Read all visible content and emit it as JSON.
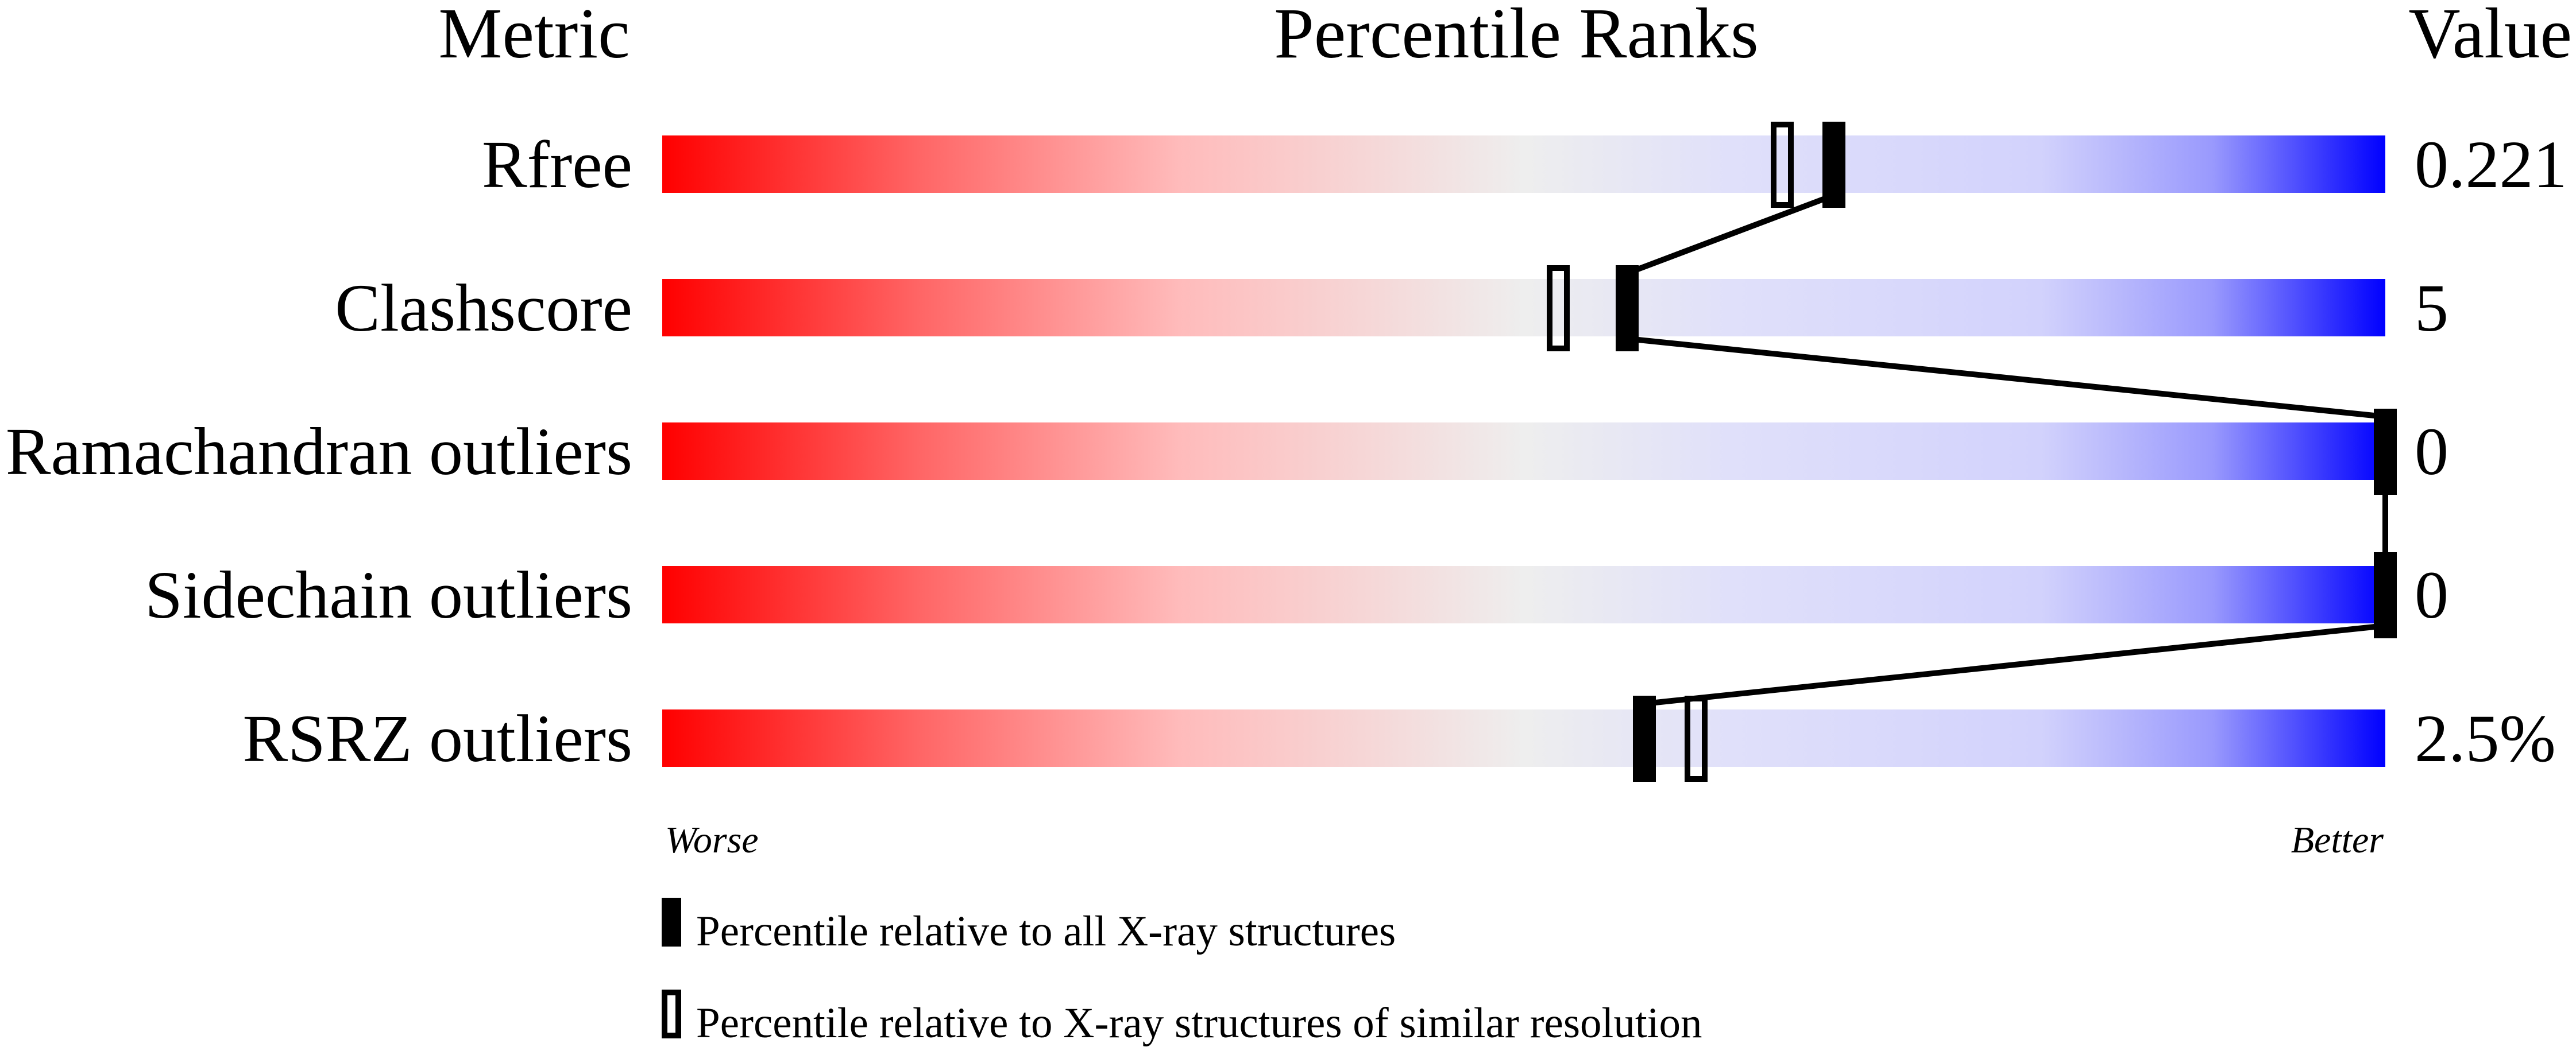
{
  "chart_data": {
    "type": "percentile-bar",
    "headers": {
      "metric": "Metric",
      "ranks": "Percentile Ranks",
      "value": "Value"
    },
    "xlim": [
      0,
      100
    ],
    "axis_labels": {
      "left": "Worse",
      "right": "Better"
    },
    "colors": {
      "worse": "#ff0000",
      "middle": "#eeeeee",
      "better": "#0000ff",
      "marker": "#000000"
    },
    "rows": [
      {
        "metric": "Rfree",
        "value": "0.221",
        "percentile_all": 68,
        "percentile_similar": 65
      },
      {
        "metric": "Clashscore",
        "value": "5",
        "percentile_all": 56,
        "percentile_similar": 52
      },
      {
        "metric": "Ramachandran outliers",
        "value": "0",
        "percentile_all": 100,
        "percentile_similar": 100
      },
      {
        "metric": "Sidechain outliers",
        "value": "0",
        "percentile_all": 100,
        "percentile_similar": 100
      },
      {
        "metric": "RSRZ outliers",
        "value": "2.5%",
        "percentile_all": 57,
        "percentile_similar": 60
      }
    ],
    "legend": [
      {
        "marker": "filled",
        "label": "Percentile relative to all X-ray structures"
      },
      {
        "marker": "open",
        "label": "Percentile relative to X-ray structures of similar resolution"
      }
    ]
  }
}
